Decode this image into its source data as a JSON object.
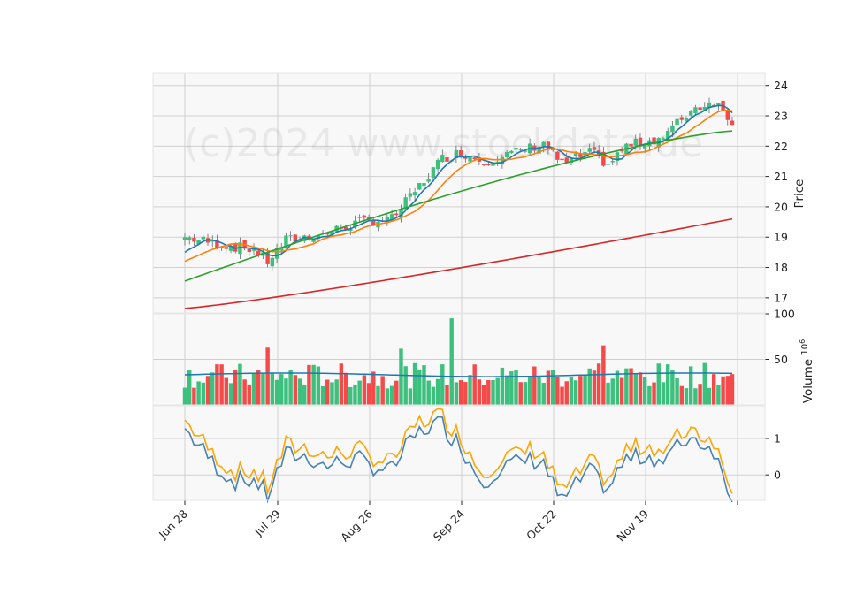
{
  "chart_data": {
    "type": "candlestick",
    "watermark": "(c)2024 www.stockdata.de",
    "colors": {
      "up": "#3dbf7e",
      "down": "#f44a4a",
      "sma_short": "#1f77b4",
      "sma_mid": "#ff7f0e",
      "sma_long": "#2ca02c",
      "sma_200": "#d62728",
      "volume_ma": "#1f77b4",
      "osc_a": "#4682b4",
      "osc_b": "#ffa500",
      "panel_bg": "#f8f8f8",
      "grid": "#d0d0d0"
    },
    "x_ticks": [
      "Jun 28",
      "Jul 29",
      "Aug 26",
      "Sep 24",
      "Oct 22",
      "Nov 19",
      ""
    ],
    "price_panel": {
      "ylabel": "Price",
      "yticks": [
        17,
        18,
        19,
        20,
        21,
        22,
        23,
        24
      ],
      "ylim": [
        16.5,
        24.4
      ],
      "series_start": {
        "sma_short": 18.5,
        "sma_mid": 18.2,
        "sma_long": 17.55,
        "sma_200": 16.65
      },
      "series_end": {
        "sma_short": 23.45,
        "sma_mid": 23.25,
        "sma_long": 22.5,
        "sma_200": 19.6
      },
      "close_start": 19.0,
      "close_end": 22.8
    },
    "volume_panel": {
      "ylabel": "Volume",
      "unit_exponent": "6",
      "yticks": [
        50,
        100
      ],
      "ylim": [
        0,
        100
      ],
      "volume_ma_level": 33
    },
    "oscillator_panel": {
      "yticks": [
        0,
        1
      ],
      "ylim": [
        -0.7,
        1.9
      ]
    }
  }
}
